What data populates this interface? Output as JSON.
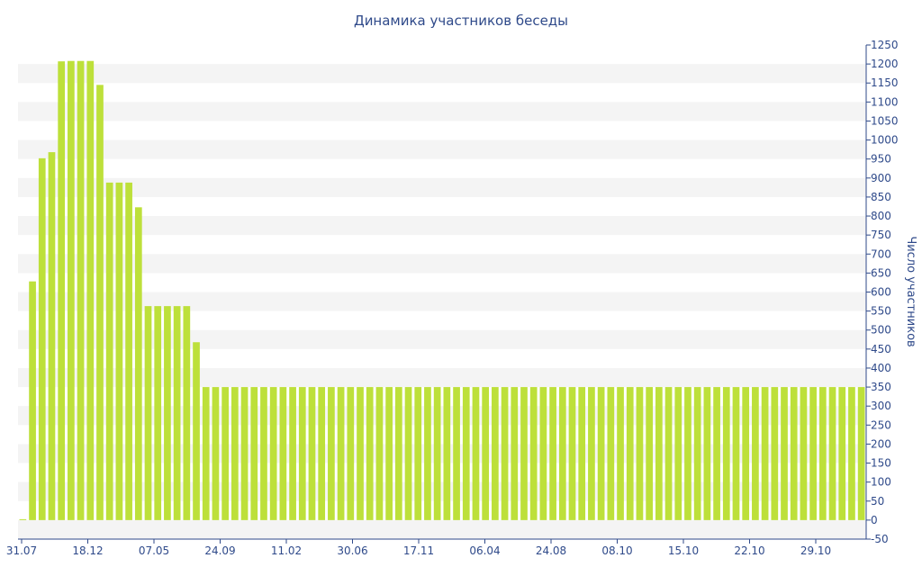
{
  "chart_data": {
    "type": "bar",
    "title": "Динамика участников беседы",
    "xlabel": "",
    "ylabel": "Число участников",
    "ylim": [
      -50,
      1250
    ],
    "y_ticks": [
      -50,
      0,
      50,
      100,
      150,
      200,
      250,
      300,
      350,
      400,
      450,
      500,
      550,
      600,
      650,
      700,
      750,
      800,
      850,
      900,
      950,
      1000,
      1050,
      1100,
      1150,
      1200,
      1250
    ],
    "x_tick_labels": [
      "31.07",
      "18.12",
      "07.05",
      "24.09",
      "11.02",
      "30.06",
      "17.11",
      "06.04",
      "24.08",
      "08.10",
      "15.10",
      "22.10",
      "29.10"
    ],
    "values": [
      0,
      628,
      952,
      968,
      1207,
      1208,
      1208,
      1208,
      1145,
      888,
      888,
      888,
      823,
      563,
      563,
      563,
      563,
      563,
      468,
      350,
      350,
      350,
      350,
      350,
      350,
      350,
      350,
      350,
      350,
      350,
      350,
      350,
      350,
      350,
      350,
      350,
      350,
      350,
      350,
      350,
      350,
      350,
      350,
      350,
      350,
      350,
      350,
      350,
      350,
      350,
      350,
      350,
      350,
      350,
      350,
      350,
      350,
      350,
      350,
      350,
      350,
      350,
      350,
      350,
      350,
      350,
      350,
      350,
      350,
      350,
      350,
      350,
      350,
      350,
      350,
      350,
      350,
      350,
      350,
      350,
      350,
      350,
      350,
      350,
      350,
      350,
      350,
      350
    ],
    "y_axis_position": "right",
    "grid": true,
    "bar_color": "#bde03a"
  }
}
